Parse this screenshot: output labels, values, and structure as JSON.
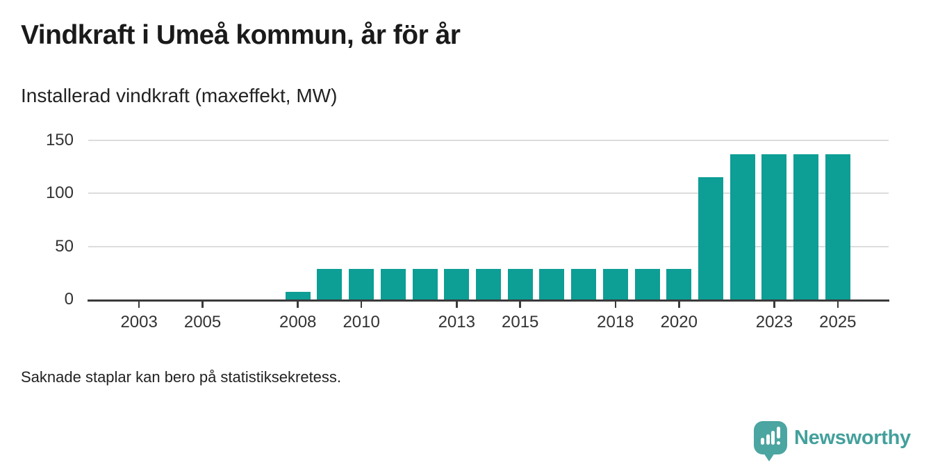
{
  "header": {
    "title": "Vindkraft i Umeå kommun, år för år",
    "subtitle": "Installerad vindkraft (maxeffekt, MW)"
  },
  "chart_data": {
    "type": "bar",
    "title": "Vindkraft i Umeå kommun, år för år",
    "subtitle": "Installerad vindkraft (maxeffekt, MW)",
    "unit": "MW",
    "categories": [
      2002,
      2003,
      2004,
      2005,
      2006,
      2007,
      2008,
      2009,
      2010,
      2011,
      2012,
      2013,
      2014,
      2015,
      2016,
      2017,
      2018,
      2019,
      2020,
      2021,
      2022,
      2023,
      2024,
      2025
    ],
    "values": [
      null,
      null,
      null,
      null,
      null,
      null,
      7,
      29,
      29,
      29,
      29,
      29,
      29,
      29,
      29,
      29,
      29,
      29,
      29,
      115,
      137,
      137,
      137,
      137
    ],
    "missing_bars_years": [
      2002,
      2003,
      2004,
      2005,
      2006,
      2007
    ],
    "xticks": [
      2003,
      2005,
      2008,
      2010,
      2013,
      2015,
      2018,
      2020,
      2023,
      2025
    ],
    "yticks": [
      0,
      50,
      100,
      150
    ],
    "ylim": [
      0,
      150
    ],
    "xlim": [
      2001.4,
      2026.6
    ],
    "grid": "horizontal-only",
    "legend": "none",
    "bar_color": "#0d9e95",
    "note": "Saknade staplar kan bero på statistiksekretess."
  },
  "footer": {
    "note": "Saknade staplar kan bero på statistiksekretess.",
    "brand": "Newsworthy"
  },
  "colors": {
    "bar": "#0d9e95",
    "axis": "#3a3a3a",
    "grid": "#dcdcdc",
    "title_text": "#1a1a1a",
    "label_text": "#333333",
    "logo_bubble": "#4ba5a1",
    "logo_text": "#43a09c"
  }
}
